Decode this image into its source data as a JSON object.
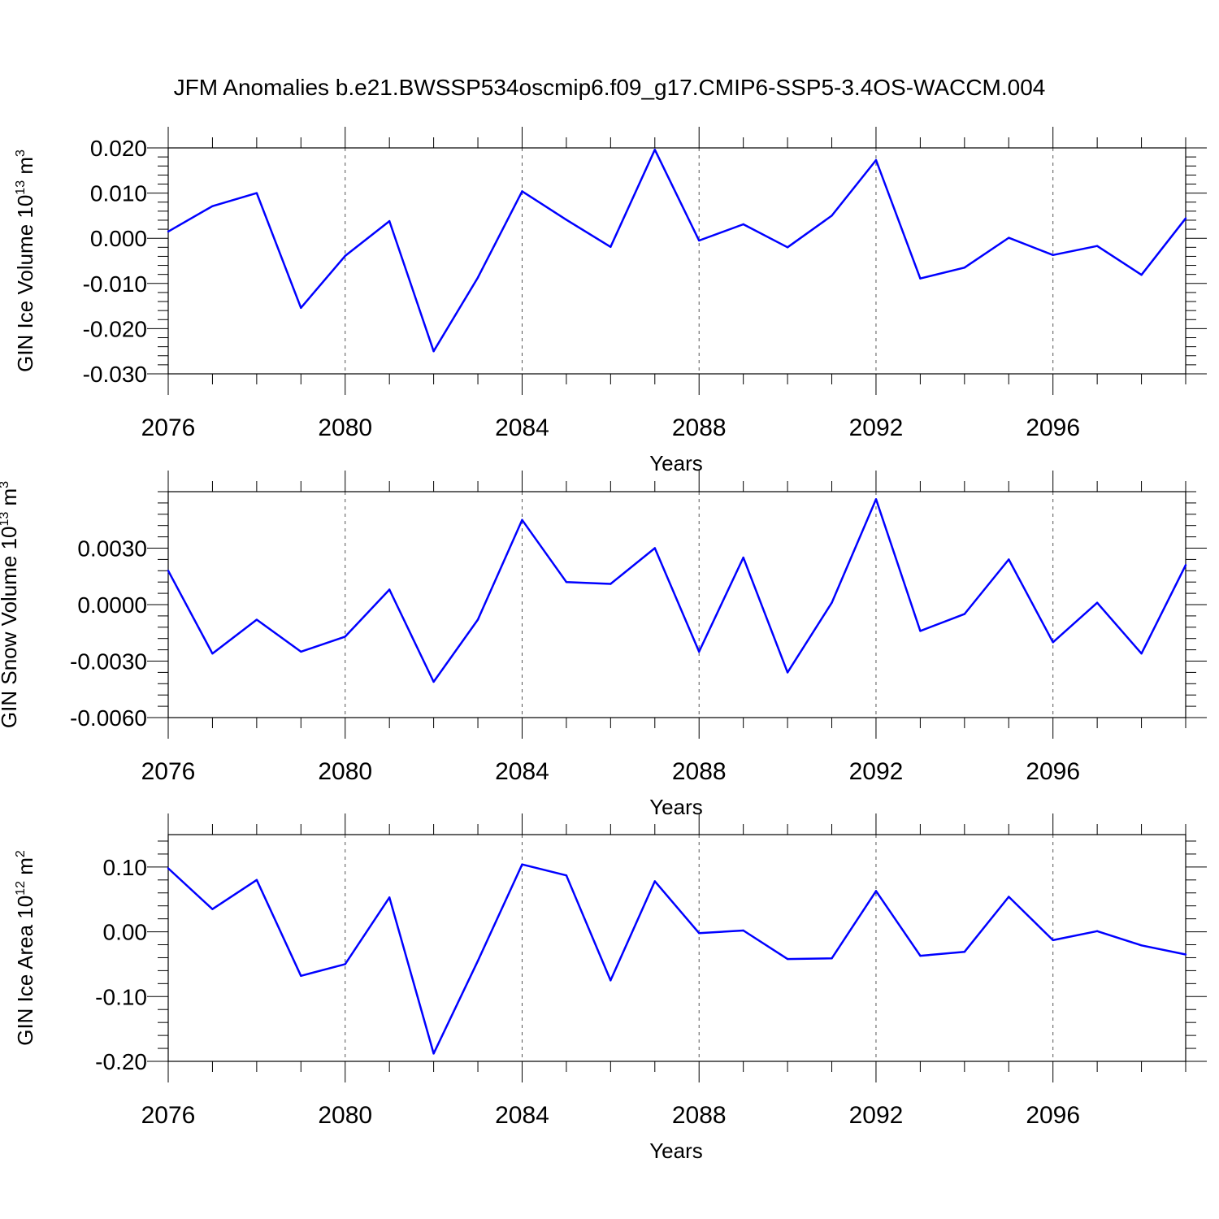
{
  "title": "JFM Anomalies b.e21.BWSSP534oscmip6.f09_g17.CMIP6-SSP5-3.4OS-WACCM.004",
  "chart_data": [
    {
      "type": "line",
      "ylabel": "GIN Ice Volume",
      "ylabel_unit": "10",
      "ylabel_exp": "13",
      "ylabel_tail": " m",
      "ylabel_tail_exp": "3",
      "xlabel": "Years",
      "xlim": [
        2076,
        2099
      ],
      "ylim": [
        -0.03,
        0.02
      ],
      "yticks": [
        -0.03,
        -0.02,
        -0.01,
        0.0,
        0.01,
        0.02
      ],
      "ytick_labels": [
        "-0.030",
        "-0.020",
        "-0.010",
        "0.000",
        "0.010",
        "0.020"
      ],
      "ydecimals": 3,
      "xticks": [
        2076,
        2080,
        2084,
        2088,
        2092,
        2096
      ],
      "xtick_labels": [
        "2076",
        "2080",
        "2084",
        "2088",
        "2092",
        "2096"
      ],
      "color": "#0000ff",
      "x": [
        2076,
        2077,
        2078,
        2079,
        2080,
        2081,
        2082,
        2083,
        2084,
        2085,
        2086,
        2087,
        2088,
        2089,
        2090,
        2091,
        2092,
        2093,
        2094,
        2095,
        2096,
        2097,
        2098,
        2099
      ],
      "y": [
        0.0015,
        0.0071,
        0.01,
        -0.0154,
        -0.0039,
        0.0038,
        -0.025,
        -0.0087,
        0.0104,
        0.0041,
        -0.0019,
        0.0196,
        -0.0005,
        0.0031,
        -0.002,
        0.005,
        0.0173,
        -0.0089,
        -0.0065,
        0.0001,
        -0.0037,
        -0.0017,
        -0.0081,
        0.0044
      ]
    },
    {
      "type": "line",
      "ylabel": "GIN Snow Volume",
      "ylabel_unit": "10",
      "ylabel_exp": "13",
      "ylabel_tail": " m",
      "ylabel_tail_exp": "3",
      "xlabel": "Years",
      "xlim": [
        2076,
        2099
      ],
      "ylim": [
        -0.006,
        0.006
      ],
      "yticks": [
        -0.006,
        -0.003,
        0.0,
        0.003
      ],
      "ytick_labels": [
        "-0.0060",
        "-0.0030",
        "0.0000",
        "0.0030"
      ],
      "ydecimals": 4,
      "xticks": [
        2076,
        2080,
        2084,
        2088,
        2092,
        2096
      ],
      "xtick_labels": [
        "2076",
        "2080",
        "2084",
        "2088",
        "2092",
        "2096"
      ],
      "color": "#0000ff",
      "x": [
        2076,
        2077,
        2078,
        2079,
        2080,
        2081,
        2082,
        2083,
        2084,
        2085,
        2086,
        2087,
        2088,
        2089,
        2090,
        2091,
        2092,
        2093,
        2094,
        2095,
        2096,
        2097,
        2098,
        2099
      ],
      "y": [
        0.0018,
        -0.0026,
        -0.0008,
        -0.0025,
        -0.0017,
        0.0008,
        -0.0041,
        -0.0008,
        0.0045,
        0.0012,
        0.0011,
        0.003,
        -0.0025,
        0.0025,
        -0.0036,
        0.0001,
        0.0056,
        -0.0014,
        -0.0005,
        0.0024,
        -0.002,
        0.0001,
        -0.0026,
        0.0021
      ]
    },
    {
      "type": "line",
      "ylabel": "GIN Ice Area",
      "ylabel_unit": "10",
      "ylabel_exp": "12",
      "ylabel_tail": " m",
      "ylabel_tail_exp": "2",
      "xlabel": "Years",
      "xlim": [
        2076,
        2099
      ],
      "ylim": [
        -0.2,
        0.15
      ],
      "yticks": [
        -0.2,
        -0.1,
        0.0,
        0.1
      ],
      "ytick_labels": [
        "-0.20",
        "-0.10",
        "0.00",
        "0.10"
      ],
      "ydecimals": 2,
      "xticks": [
        2076,
        2080,
        2084,
        2088,
        2092,
        2096
      ],
      "xtick_labels": [
        "2076",
        "2080",
        "2084",
        "2088",
        "2092",
        "2096"
      ],
      "color": "#0000ff",
      "x": [
        2076,
        2077,
        2078,
        2079,
        2080,
        2081,
        2082,
        2083,
        2084,
        2085,
        2086,
        2087,
        2088,
        2089,
        2090,
        2091,
        2092,
        2093,
        2094,
        2095,
        2096,
        2097,
        2098,
        2099
      ],
      "y": [
        0.098,
        0.035,
        0.08,
        -0.068,
        -0.05,
        0.053,
        -0.188,
        -0.045,
        0.104,
        0.087,
        -0.075,
        0.078,
        -0.002,
        0.002,
        -0.042,
        -0.041,
        0.063,
        -0.037,
        -0.031,
        0.054,
        -0.013,
        0.001,
        -0.021,
        -0.035
      ]
    }
  ]
}
